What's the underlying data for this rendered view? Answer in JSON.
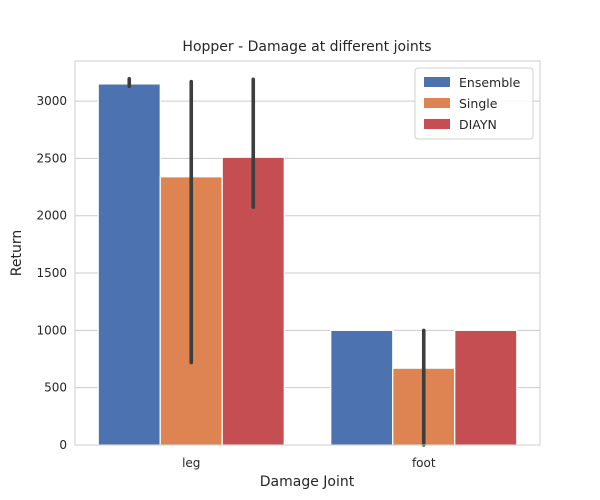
{
  "chart_data": {
    "type": "bar",
    "title": "Hopper - Damage at different joints",
    "xlabel": "Damage Joint",
    "ylabel": "Return",
    "categories": [
      "leg",
      "foot"
    ],
    "ylim": [
      0,
      3350
    ],
    "yticks": [
      0,
      500,
      1000,
      1500,
      2000,
      2500,
      3000
    ],
    "grid": "horizontal",
    "legend_position": "top-right",
    "series": [
      {
        "name": "Ensemble",
        "color": "#4c72b0",
        "values": [
          3150,
          1000
        ],
        "error": [
          [
            3130,
            3195
          ],
          null
        ]
      },
      {
        "name": "Single",
        "color": "#dd8452",
        "values": [
          2340,
          670
        ],
        "error": [
          [
            720,
            3170
          ],
          [
            0,
            1000
          ]
        ]
      },
      {
        "name": "DIAYN",
        "color": "#c44e52",
        "values": [
          2510,
          1000
        ],
        "error": [
          [
            2075,
            3190
          ],
          null
        ]
      }
    ]
  }
}
